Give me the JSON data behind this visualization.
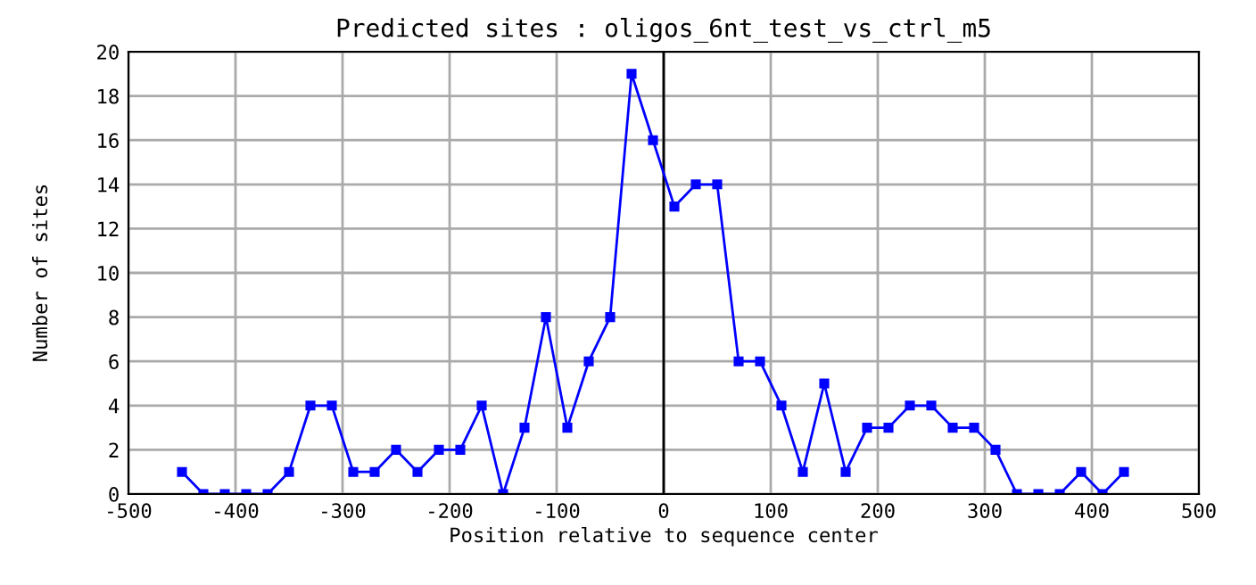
{
  "chart_data": {
    "type": "line",
    "title": "Predicted sites : oligos_6nt_test_vs_ctrl_m5",
    "xlabel": "Position relative to sequence center",
    "ylabel": "Number of sites",
    "x": [
      -450,
      -430,
      -410,
      -390,
      -370,
      -350,
      -330,
      -310,
      -290,
      -270,
      -250,
      -230,
      -210,
      -190,
      -170,
      -150,
      -130,
      -110,
      -90,
      -70,
      -50,
      -30,
      -10,
      10,
      30,
      50,
      70,
      90,
      110,
      130,
      150,
      170,
      190,
      210,
      230,
      250,
      270,
      290,
      310,
      330,
      350,
      370,
      390,
      410,
      430
    ],
    "series": [
      {
        "color": "#0000ff",
        "values": [
          1,
          0,
          0,
          0,
          0,
          1,
          4,
          4,
          1,
          1,
          2,
          1,
          2,
          2,
          4,
          0,
          3,
          8,
          3,
          6,
          8,
          19,
          16,
          13,
          14,
          14,
          6,
          6,
          4,
          1,
          5,
          1,
          3,
          3,
          4,
          4,
          3,
          3,
          2,
          0,
          0,
          0,
          1,
          0,
          1
        ]
      }
    ],
    "xlim": [
      -500,
      500
    ],
    "xticks": [
      -500,
      -400,
      -300,
      -200,
      -100,
      0,
      100,
      200,
      300,
      400,
      500
    ],
    "ylim": [
      0,
      20
    ],
    "yticks": [
      0,
      2,
      4,
      6,
      8,
      10,
      12,
      14,
      16,
      18,
      20
    ],
    "ref_lines": [
      {
        "axis": "x",
        "value": 0,
        "color": "#000000"
      }
    ],
    "grid": true,
    "marker": "square",
    "line_style": "solid",
    "legend": false
  }
}
